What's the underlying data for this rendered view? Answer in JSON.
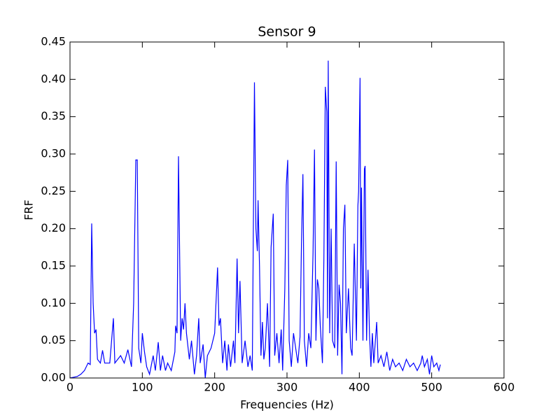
{
  "chart_data": {
    "type": "line",
    "title": "Sensor 9",
    "xlabel": "Frequencies (Hz)",
    "ylabel": "FRF",
    "x": [
      0,
      5,
      10,
      15,
      20,
      25,
      28,
      30,
      32,
      34,
      36,
      38,
      42,
      45,
      48,
      55,
      60,
      62,
      70,
      75,
      80,
      85,
      88,
      91,
      93,
      95,
      98,
      100,
      103,
      106,
      110,
      115,
      118,
      122,
      125,
      128,
      132,
      135,
      140,
      145,
      146,
      148,
      150,
      153,
      155,
      157,
      159,
      161,
      165,
      168,
      172,
      175,
      178,
      180,
      184,
      187,
      190,
      195,
      200,
      204,
      206,
      208,
      211,
      214,
      217,
      219,
      222,
      226,
      228,
      231,
      233,
      235,
      238,
      242,
      246,
      249,
      252,
      255,
      257,
      259,
      260,
      262,
      264,
      266,
      268,
      270,
      273,
      276,
      278,
      281,
      283,
      286,
      289,
      292,
      294,
      297,
      299,
      301,
      303,
      306,
      309,
      312,
      315,
      318,
      320,
      322,
      324,
      327,
      330,
      333,
      336,
      338,
      340,
      342,
      344,
      346,
      349,
      351,
      353,
      355,
      356,
      357,
      359,
      361,
      363,
      366,
      368,
      370,
      372,
      374,
      376,
      378,
      380,
      382,
      385,
      388,
      390,
      393,
      396,
      398,
      399,
      401,
      402,
      403,
      405,
      407,
      408,
      410,
      412,
      414,
      416,
      418,
      420,
      424,
      426,
      430,
      434,
      438,
      442,
      446,
      450,
      455,
      460,
      465,
      470,
      475,
      480,
      485,
      487,
      490,
      494,
      497,
      500,
      503,
      507,
      510,
      512
    ],
    "series": [
      {
        "name": "Sensor 9",
        "color": "#0000ff",
        "values": [
          0,
          0.001,
          0.002,
          0.005,
          0.01,
          0.02,
          0.018,
          0.207,
          0.1,
          0.06,
          0.065,
          0.025,
          0.02,
          0.037,
          0.02,
          0.02,
          0.08,
          0.02,
          0.03,
          0.02,
          0.038,
          0.015,
          0.1,
          0.292,
          0.292,
          0.04,
          0.02,
          0.06,
          0.035,
          0.015,
          0.005,
          0.03,
          0.01,
          0.048,
          0.01,
          0.03,
          0.01,
          0.02,
          0.01,
          0.035,
          0.07,
          0.06,
          0.297,
          0.05,
          0.08,
          0.065,
          0.1,
          0.06,
          0.025,
          0.05,
          0.005,
          0.03,
          0.08,
          0.02,
          0.045,
          0,
          0.03,
          0.04,
          0.06,
          0.148,
          0.07,
          0.08,
          0.02,
          0.05,
          0.01,
          0.045,
          0.015,
          0.05,
          0.02,
          0.16,
          0.06,
          0.13,
          0.02,
          0.05,
          0.015,
          0.03,
          0.01,
          0.396,
          0.2,
          0.17,
          0.238,
          0.15,
          0.03,
          0.075,
          0.025,
          0.04,
          0.1,
          0.015,
          0.175,
          0.22,
          0.03,
          0.06,
          0.02,
          0.065,
          0.01,
          0.12,
          0.258,
          0.292,
          0.05,
          0.015,
          0.06,
          0.04,
          0.02,
          0.055,
          0.18,
          0.273,
          0.05,
          0.015,
          0.06,
          0.04,
          0.168,
          0.306,
          0.05,
          0.132,
          0.12,
          0.07,
          0.02,
          0.16,
          0.39,
          0.356,
          0.08,
          0.425,
          0.06,
          0.2,
          0.05,
          0.04,
          0.29,
          0.03,
          0.125,
          0.1,
          0.005,
          0.2,
          0.232,
          0.06,
          0.12,
          0.04,
          0.03,
          0.18,
          0.05,
          0.23,
          0.25,
          0.402,
          0.12,
          0.255,
          0.05,
          0.28,
          0.284,
          0.05,
          0.145,
          0.06,
          0.015,
          0.06,
          0.02,
          0.075,
          0.02,
          0.03,
          0.015,
          0.035,
          0.01,
          0.025,
          0.015,
          0.02,
          0.01,
          0.025,
          0.015,
          0.02,
          0.01,
          0.02,
          0.03,
          0.015,
          0.025,
          0.005,
          0.03,
          0.015,
          0.02,
          0.01,
          0.018
        ]
      }
    ],
    "xlim": [
      0,
      600
    ],
    "xticks": [
      0,
      100,
      200,
      300,
      400,
      500,
      600
    ],
    "ylim": [
      0,
      0.45
    ],
    "yticks": [
      {
        "value": 0,
        "label": "0.00"
      },
      {
        "value": 0.05,
        "label": "0.05"
      },
      {
        "value": 0.1,
        "label": "0.10"
      },
      {
        "value": 0.15,
        "label": "0.15"
      },
      {
        "value": 0.2,
        "label": "0.20"
      },
      {
        "value": 0.25,
        "label": "0.25"
      },
      {
        "value": 0.3,
        "label": "0.30"
      },
      {
        "value": 0.35,
        "label": "0.35"
      },
      {
        "value": 0.4,
        "label": "0.40"
      },
      {
        "value": 0.45,
        "label": "0.45"
      }
    ]
  }
}
